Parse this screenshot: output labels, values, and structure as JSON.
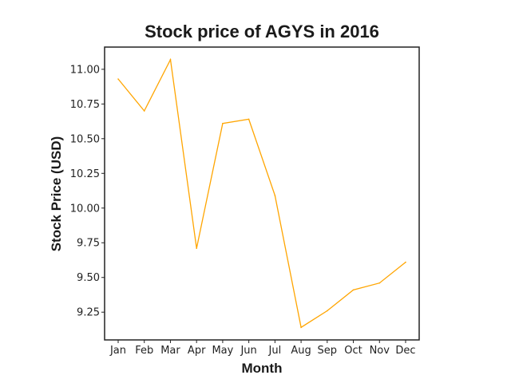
{
  "chart_data": {
    "type": "line",
    "title": "Stock price of AGYS in 2016",
    "xlabel": "Month",
    "ylabel": "Stock Price (USD)",
    "categories": [
      "Jan",
      "Feb",
      "Mar",
      "Apr",
      "May",
      "Jun",
      "Jul",
      "Aug",
      "Sep",
      "Oct",
      "Nov",
      "Dec"
    ],
    "series": [
      {
        "values": [
          10.93,
          10.7,
          11.07,
          9.71,
          10.61,
          10.64,
          10.09,
          9.14,
          9.26,
          9.41,
          9.46,
          9.61
        ],
        "color": "#FFA500"
      }
    ],
    "ylim": [
      9.05,
      11.16
    ],
    "yticks": [
      9.25,
      9.5,
      9.75,
      10.0,
      10.25,
      10.5,
      10.75,
      11.0
    ],
    "ytick_labels": [
      "9.25",
      "9.50",
      "9.75",
      "10.00",
      "10.25",
      "10.50",
      "10.75",
      "11.00"
    ],
    "grid": false,
    "legend": "none"
  }
}
